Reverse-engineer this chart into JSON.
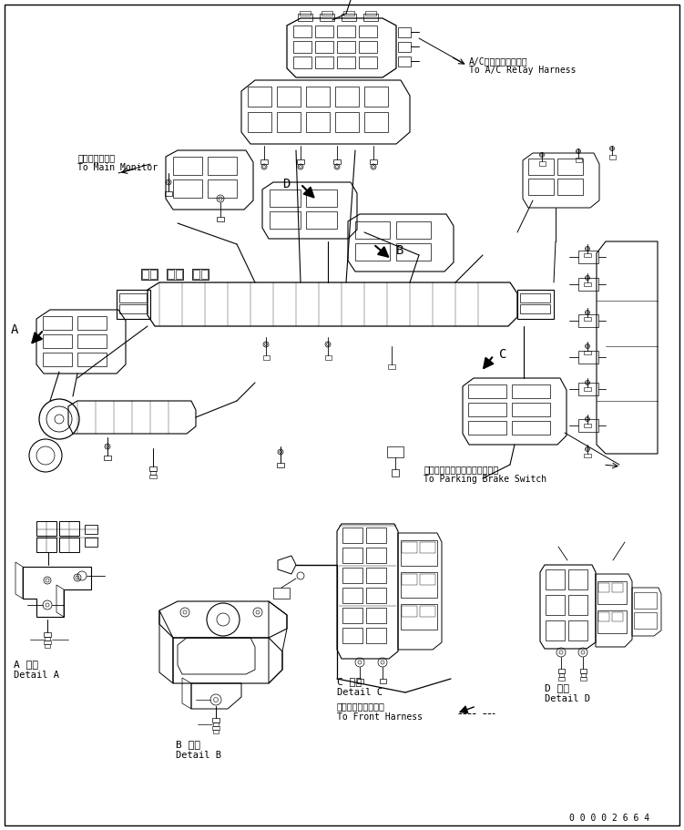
{
  "bg_color": "#ffffff",
  "line_color": "#000000",
  "figsize": [
    7.51,
    9.11
  ],
  "dpi": 100,
  "labels": {
    "main_monitor_jp": "メインモニタへ",
    "main_monitor_en": "To Main Monitor",
    "ac_relay_jp": "A/Cリレーハーネスへ",
    "ac_relay_en": "To A/C Relay Harness",
    "parking_jp": "パーキングブレーキスイッチへ",
    "parking_en": "To Parking Brake Switch",
    "front_harness_jp": "フロントハーネスへ",
    "front_harness_en": "To Front Harness",
    "detail_a_jp": "A 詳細",
    "detail_a_en": "Detail A",
    "detail_b_jp": "B 詳細",
    "detail_b_en": "Detail B",
    "detail_c_jp": "C 詳細",
    "detail_c_en": "Detail C",
    "detail_d_jp": "D 詳細",
    "detail_d_en": "Detail D",
    "label_A": "A",
    "label_B": "B",
    "label_C": "C",
    "label_D": "D",
    "part_number": "0 0 0 0 2 6 6 4"
  },
  "font_sizes": {
    "label_letter": 10,
    "label_text": 7,
    "detail_jp": 8,
    "detail_en": 7.5,
    "part_number": 7
  }
}
